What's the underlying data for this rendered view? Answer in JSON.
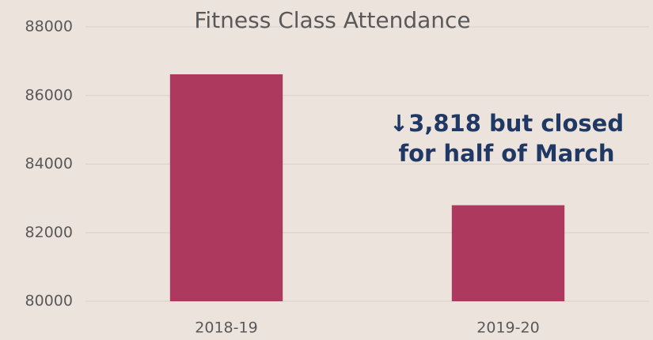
{
  "chart_data": {
    "type": "bar",
    "title": "Fitness Class Attendance",
    "categories": [
      "2018-19",
      "2019-20"
    ],
    "values": [
      86618,
      82800
    ],
    "color": "#ad3a5e",
    "ylim": [
      80000,
      88000
    ],
    "yticks": [
      80000,
      82000,
      84000,
      86000,
      88000
    ],
    "grid": true,
    "annotation": [
      "↓3,818 but closed",
      "for half of March"
    ]
  }
}
